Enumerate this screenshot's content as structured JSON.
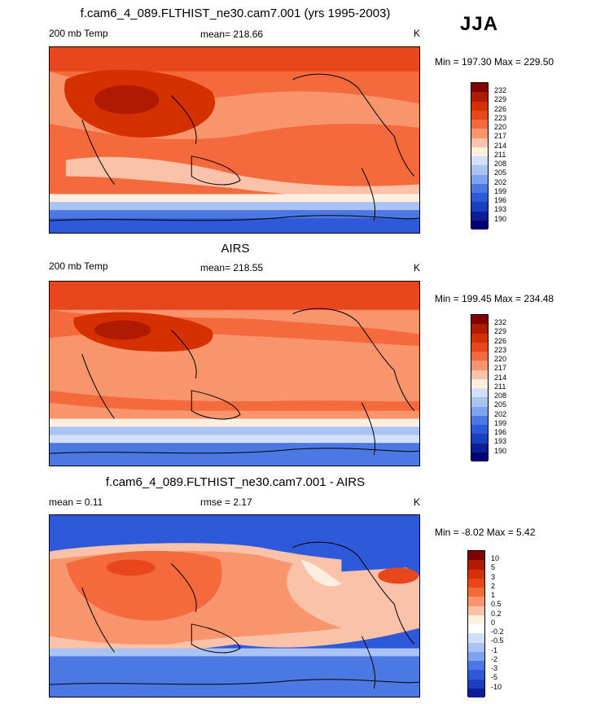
{
  "season": "JJA",
  "panels": [
    {
      "id": "model",
      "title": "f.cam6_4_089.FLTHIST_ne30.cam7.001 (yrs 1995-2003)",
      "left_label": "200 mb Temp",
      "center_label": "mean= 218.66",
      "units": "K",
      "minmax": "Min = 197.30 Max = 229.50",
      "colorbar_labels": [
        "232",
        "229",
        "226",
        "223",
        "220",
        "217",
        "214",
        "211",
        "208",
        "205",
        "202",
        "199",
        "196",
        "193",
        "190"
      ]
    },
    {
      "id": "obs",
      "title": "AIRS",
      "left_label": "200 mb Temp",
      "center_label": "mean= 218.55",
      "units": "K",
      "minmax": "Min = 199.45 Max = 234.48",
      "colorbar_labels": [
        "232",
        "229",
        "226",
        "223",
        "220",
        "217",
        "214",
        "211",
        "208",
        "205",
        "202",
        "199",
        "196",
        "193",
        "190"
      ]
    },
    {
      "id": "diff",
      "title": "f.cam6_4_089.FLTHIST_ne30.cam7.001 - AIRS",
      "left_label": "mean =   0.11",
      "center_label": "rmse =   2.17",
      "units": "K",
      "minmax": "Min =  -8.02 Max =   5.42",
      "colorbar_labels": [
        "10",
        "5",
        "3",
        "2",
        "1",
        "0.5",
        "0.2",
        "0",
        "-0.2",
        "-0.5",
        "-1",
        "-2",
        "-3",
        "-5",
        "-10"
      ]
    }
  ],
  "colors": {
    "temp_scale": [
      "#800000",
      "#b01b00",
      "#d43000",
      "#e8471d",
      "#f56a3d",
      "#f8956d",
      "#fac2a8",
      "#fdeedf",
      "#cfe0f8",
      "#a8c3f4",
      "#7ea3ee",
      "#4c78e4",
      "#2e59d8",
      "#1c3fbd",
      "#0c1e96",
      "#000070"
    ],
    "diff_scale": [
      "#800000",
      "#b01b00",
      "#d43000",
      "#e8471d",
      "#f56a3d",
      "#f8956d",
      "#fac2a8",
      "#fdeedf",
      "#ffffff",
      "#cfe0f8",
      "#a8c3f4",
      "#7ea3ee",
      "#4c78e4",
      "#2e59d8",
      "#1c3fbd",
      "#0c1e96"
    ],
    "land_outline": "#000000"
  }
}
